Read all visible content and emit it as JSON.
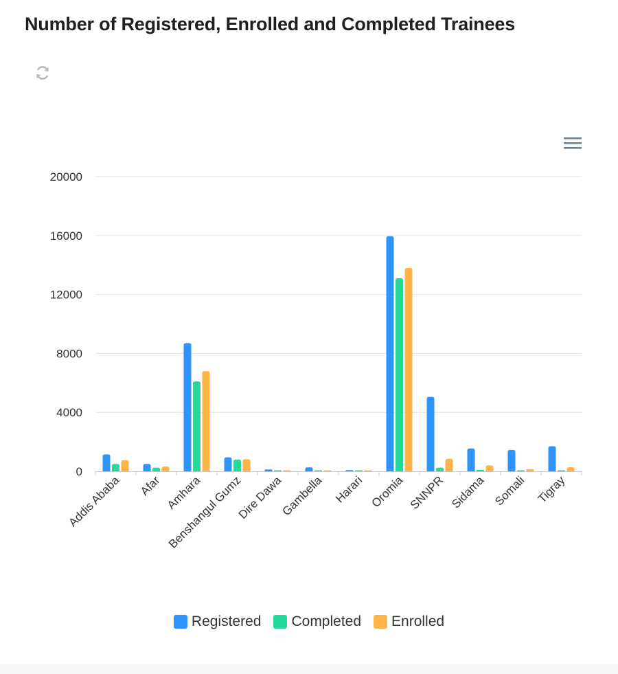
{
  "title": "Number of Registered, Enrolled and Completed Trainees",
  "toolbar": {
    "refresh_icon": "refresh-icon",
    "menu_icon": "hamburger-menu-icon"
  },
  "colors": {
    "Registered": "#2e93fa",
    "Completed": "#26d89a",
    "Enrolled": "#feb448"
  },
  "chart_data": {
    "type": "bar",
    "title": "Number of Registered, Enrolled and Completed Trainees",
    "xlabel": "",
    "ylabel": "",
    "ylim": [
      0,
      20000
    ],
    "yticks": [
      "0",
      "4000",
      "8000",
      "12000",
      "16000",
      "20000"
    ],
    "grid": true,
    "legend": "bottom-center",
    "categories": [
      "Addis Ababa",
      "Afar",
      "Amhara",
      "Benshangul Gumz",
      "Dire Dawa",
      "Gambella",
      "Harari",
      "Oromia",
      "SNNPR",
      "Sidama",
      "Somali",
      "Tigray"
    ],
    "series": [
      {
        "name": "Registered",
        "color": "#2e93fa",
        "values": [
          1150,
          500,
          8700,
          950,
          130,
          270,
          80,
          15950,
          5050,
          1550,
          1450,
          1700
        ]
      },
      {
        "name": "Completed",
        "color": "#26d89a",
        "values": [
          500,
          250,
          6100,
          800,
          40,
          5,
          10,
          13100,
          250,
          100,
          20,
          60
        ]
      },
      {
        "name": "Enrolled",
        "color": "#feb448",
        "values": [
          750,
          330,
          6800,
          820,
          70,
          5,
          30,
          13800,
          850,
          400,
          150,
          280
        ]
      }
    ]
  }
}
